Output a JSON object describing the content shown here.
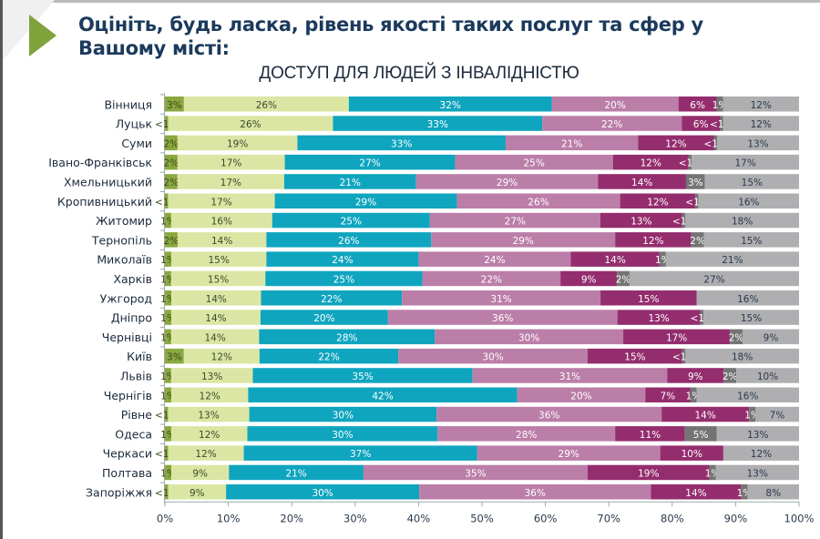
{
  "title": "Оцініть, будь ласка, рівень якості таких послуг та сфер у Вашому місті:",
  "chart_data": {
    "type": "bar",
    "orientation": "horizontal",
    "stacked": true,
    "normalized": true,
    "title": "ДОСТУП ДЛЯ ЛЮДЕЙ З ІНВАЛІДНІСТЮ",
    "xlabel": "",
    "ylabel": "",
    "xlim": [
      0,
      100
    ],
    "x_ticks": [
      "0%",
      "10%",
      "20%",
      "30%",
      "40%",
      "50%",
      "60%",
      "70%",
      "80%",
      "90%",
      "100%"
    ],
    "grid": false,
    "legend": "none",
    "categories": [
      "Вінниця",
      "Луцьк",
      "Суми",
      "Івано-Франківськ",
      "Хмельницький",
      "Кропивницький",
      "Житомир",
      "Тернопіль",
      "Миколаїв",
      "Харків",
      "Ужгород",
      "Дніпро",
      "Чернівці",
      "Київ",
      "Львів",
      "Чернігів",
      "Рівне",
      "Одеса",
      "Черкаси",
      "Полтава",
      "Запоріжжя"
    ],
    "series": [
      {
        "name": "segment-1",
        "color": "#8aa83f",
        "label_color": "#3b4a1c",
        "values": [
          3,
          0.5,
          2,
          2,
          2,
          0.5,
          1,
          2,
          1,
          1,
          1,
          1,
          1,
          3,
          1,
          1,
          0.5,
          1,
          0.5,
          1,
          0.5
        ],
        "labels": [
          "3%",
          "<1%",
          "2%",
          "2%",
          "2%",
          "<1%",
          "1%",
          "2%",
          "1%",
          "1%",
          "1%",
          "1%",
          "1%",
          "3%",
          "1%",
          "1%",
          "<1%",
          "1%",
          "<1%",
          "1%",
          "<1%"
        ]
      },
      {
        "name": "segment-2",
        "color": "#dbe6a4",
        "label_color": "#3b4a2c",
        "values": [
          26,
          26,
          19,
          17,
          17,
          17,
          16,
          14,
          15,
          15,
          14,
          14,
          14,
          12,
          13,
          12,
          13,
          12,
          12,
          9,
          9
        ],
        "labels": [
          "26%",
          "26%",
          "19%",
          "17%",
          "17%",
          "17%",
          "16%",
          "14%",
          "15%",
          "15%",
          "14%",
          "14%",
          "14%",
          "12%",
          "13%",
          "12%",
          "13%",
          "12%",
          "12%",
          "9%",
          "9%"
        ]
      },
      {
        "name": "segment-3",
        "color": "#0fa5bf",
        "label_color": "#ffffff",
        "values": [
          32,
          33,
          33,
          27,
          21,
          29,
          25,
          26,
          24,
          25,
          22,
          20,
          28,
          22,
          35,
          42,
          30,
          30,
          37,
          21,
          30
        ],
        "labels": [
          "32%",
          "33%",
          "33%",
          "27%",
          "21%",
          "29%",
          "25%",
          "26%",
          "24%",
          "25%",
          "22%",
          "20%",
          "28%",
          "22%",
          "35%",
          "42%",
          "30%",
          "30%",
          "37%",
          "21%",
          "30%"
        ]
      },
      {
        "name": "segment-4",
        "color": "#bb7ea8",
        "label_color": "#ffffff",
        "values": [
          20,
          22,
          21,
          25,
          29,
          26,
          27,
          29,
          24,
          22,
          31,
          36,
          30,
          30,
          31,
          20,
          36,
          28,
          29,
          35,
          36
        ],
        "labels": [
          "20%",
          "22%",
          "21%",
          "25%",
          "29%",
          "26%",
          "27%",
          "29%",
          "24%",
          "22%",
          "31%",
          "36%",
          "30%",
          "30%",
          "31%",
          "20%",
          "36%",
          "28%",
          "29%",
          "35%",
          "36%"
        ]
      },
      {
        "name": "segment-5",
        "color": "#942d6e",
        "label_color": "#ffffff",
        "values": [
          6,
          6,
          12,
          12,
          14,
          12,
          13,
          12,
          14,
          9,
          15,
          13,
          17,
          15,
          9,
          7,
          14,
          11,
          10,
          19,
          14
        ],
        "labels": [
          "6%",
          "6%",
          "12%",
          "12%",
          "14%",
          "12%",
          "13%",
          "12%",
          "14%",
          "9%",
          "15%",
          "13%",
          "17%",
          "15%",
          "9%",
          "7%",
          "14%",
          "11%",
          "10%",
          "19%",
          "14%"
        ]
      },
      {
        "name": "segment-6",
        "color": "#747474",
        "label_color": "#ffffff",
        "values": [
          1,
          0.5,
          0.5,
          0.5,
          3,
          0.5,
          0.5,
          2,
          1,
          2,
          0,
          0.5,
          2,
          0.5,
          2,
          1,
          1,
          5,
          0,
          1,
          1
        ],
        "labels": [
          "1%",
          "<1%",
          "<1%",
          "<1%",
          "3%",
          "<1%",
          "<1%",
          "2%",
          "1%",
          "2%",
          "",
          "<1%",
          "2%",
          "<1%",
          "2%",
          "1%",
          "1%",
          "5%",
          "",
          "1%",
          "1%"
        ]
      },
      {
        "name": "segment-7",
        "color": "#afafb2",
        "label_color": "#2a3a4c",
        "values": [
          12,
          12,
          13,
          17,
          15,
          16,
          18,
          15,
          21,
          27,
          16,
          15,
          9,
          18,
          10,
          16,
          7,
          13,
          12,
          13,
          8
        ],
        "labels": [
          "12%",
          "12%",
          "13%",
          "17%",
          "15%",
          "16%",
          "18%",
          "15%",
          "21%",
          "27%",
          "16%",
          "15%",
          "9%",
          "18%",
          "10%",
          "16%",
          "7%",
          "13%",
          "12%",
          "13%",
          "8%"
        ]
      }
    ]
  }
}
